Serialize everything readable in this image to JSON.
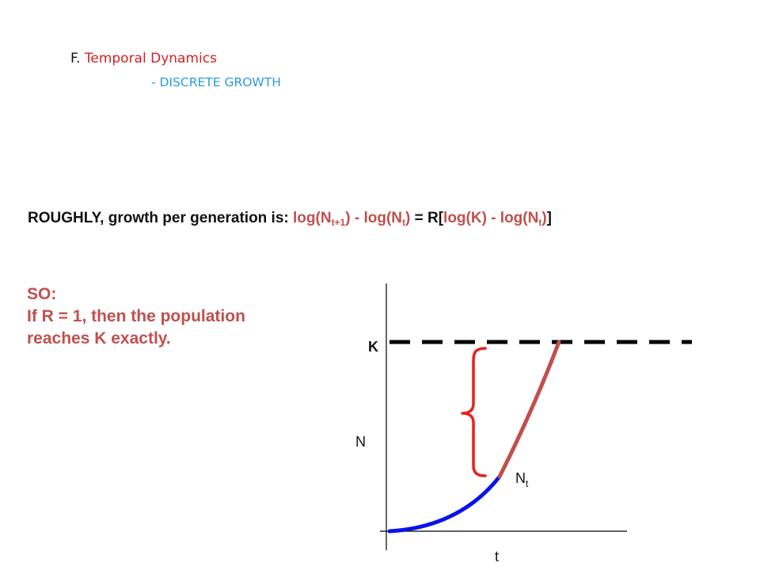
{
  "header": {
    "title_prefix": "F.",
    "title_text": "Temporal Dynamics",
    "subtitle": "- DISCRETE GROWTH"
  },
  "formula": {
    "lead": "ROUGHLY, growth per generation is: ",
    "lhs_a": "log(N",
    "lhs_a_sub": "t+1",
    "lhs_b": ") - log(N",
    "lhs_b_sub": "t",
    "lhs_c": ")",
    "equals": " = R[",
    "rhs_a": "log(K) - log(N",
    "rhs_a_sub": "t",
    "rhs_b": ")",
    "close": "]"
  },
  "conclusion": {
    "line1": "SO:",
    "line2": "If R = 1, then the population",
    "line3": "reaches K exactly."
  },
  "graph": {
    "k_label": "K",
    "y_label": "N",
    "x_label": "t",
    "nt_label": "N",
    "nt_sub": "t",
    "colors": {
      "blue_curve": "#0a14e6",
      "red_curve": "#c0504d",
      "brace": "#e8201c",
      "axes": "#000000"
    }
  }
}
